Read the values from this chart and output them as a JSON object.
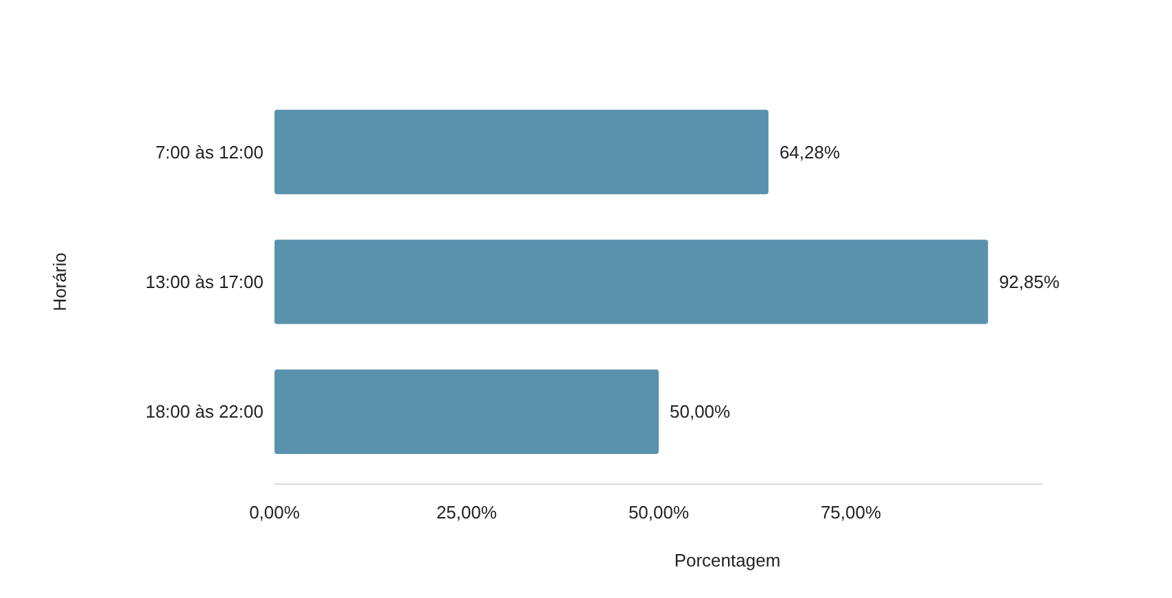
{
  "chart_data": {
    "type": "bar",
    "orientation": "horizontal",
    "xlabel": "Porcentagem",
    "ylabel": "Horário",
    "categories": [
      "7:00 às 12:00",
      "13:00 às 17:00",
      "18:00 às 22:00"
    ],
    "values": [
      64.28,
      92.85,
      50.0
    ],
    "value_labels": [
      "64,28%",
      "92,85%",
      "50,00%"
    ],
    "color": "#5a92ae",
    "xticks": [
      {
        "value": 0,
        "label": "0,00%"
      },
      {
        "value": 25,
        "label": "25,00%"
      },
      {
        "value": 50,
        "label": "50,00%"
      },
      {
        "value": 75,
        "label": "75,00%"
      }
    ],
    "xlim": [
      0,
      100
    ],
    "grid": false
  }
}
